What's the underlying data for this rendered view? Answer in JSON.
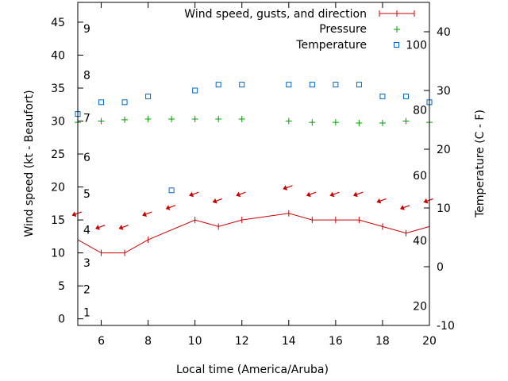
{
  "chart_data": {
    "type": "line",
    "xlabel": "Local time (America/Aruba)",
    "ylabel_left": "Wind speed (kt - Beaufort)",
    "ylabel_right": "Temperature (C - F)",
    "xlim": [
      5,
      20
    ],
    "ylim": [
      -1,
      48
    ],
    "x_ticks": [
      6,
      8,
      10,
      12,
      14,
      16,
      18,
      20
    ],
    "y_ticks": [
      0,
      5,
      10,
      15,
      20,
      25,
      30,
      35,
      40,
      45
    ],
    "y2_lim": [
      -10,
      45
    ],
    "y2_ticks": [
      -10,
      0,
      10,
      20,
      30,
      40
    ],
    "beaufort_ticks": [
      {
        "label": "1",
        "kt": 1
      },
      {
        "label": "2",
        "kt": 4.5
      },
      {
        "label": "3",
        "kt": 8.5
      },
      {
        "label": "4",
        "kt": 13.5
      },
      {
        "label": "5",
        "kt": 19
      },
      {
        "label": "6",
        "kt": 24.5
      },
      {
        "label": "7",
        "kt": 30.5
      },
      {
        "label": "8",
        "kt": 37
      },
      {
        "label": "9",
        "kt": 44
      }
    ],
    "fahrenheit_ticks": [
      {
        "label": "20",
        "temp_c": -6.67
      },
      {
        "label": "40",
        "temp_c": 4.44
      },
      {
        "label": "60",
        "temp_c": 15.56
      },
      {
        "label": "80",
        "temp_c": 26.67
      },
      {
        "label": "100",
        "temp_c": 37.78
      }
    ],
    "legend": {
      "wind": "Wind speed, gusts, and direction",
      "pressure": "Pressure",
      "temperature": "Temperature"
    },
    "series": [
      {
        "name": "Wind speed, gusts, and direction",
        "color": "#cc0000",
        "x": [
          5,
          6,
          7,
          8,
          10,
          11,
          12,
          14,
          15,
          16,
          17,
          18,
          19,
          20
        ],
        "values": [
          12,
          10,
          10,
          12,
          15,
          14,
          15,
          16,
          15,
          15,
          15,
          14,
          13,
          14
        ]
      },
      {
        "name": "Wind direction arrows",
        "color": "#cc0000",
        "x": [
          5,
          6,
          7,
          8,
          9,
          10,
          11,
          12,
          14,
          15,
          16,
          17,
          18,
          19,
          20
        ],
        "values": [
          16,
          14,
          14,
          16,
          17,
          19,
          18,
          19,
          20,
          19,
          19,
          19,
          18,
          17,
          18
        ]
      },
      {
        "name": "Pressure",
        "color": "#00a000",
        "x": [
          5,
          6,
          7,
          8,
          9,
          10,
          11,
          12,
          14,
          15,
          16,
          17,
          18,
          19,
          20
        ],
        "values": [
          29.8,
          30.0,
          30.2,
          30.3,
          30.3,
          30.3,
          30.3,
          30.3,
          30.0,
          29.8,
          29.8,
          29.7,
          29.7,
          30.0,
          29.8
        ]
      },
      {
        "name": "Temperature",
        "color": "#0066cc",
        "x": [
          5,
          6,
          7,
          8,
          9,
          10,
          11,
          12,
          14,
          15,
          16,
          17,
          18,
          19,
          20
        ],
        "values": [
          26,
          28,
          28,
          29,
          13,
          30,
          31,
          31,
          31,
          31,
          31,
          31,
          29,
          29,
          28
        ]
      }
    ]
  }
}
